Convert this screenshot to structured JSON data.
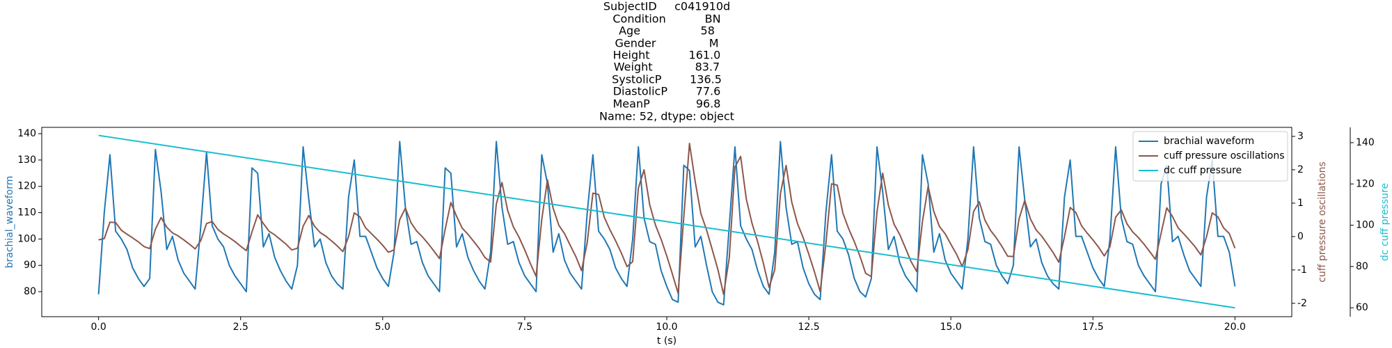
{
  "chart_data": {
    "type": "line",
    "title": [
      "SubjectID     c041910d",
      "Condition           BN",
      "Age                 58",
      "Gender               M",
      "Height           161.0",
      "Weight            83.7",
      "SystolicP        136.5",
      "DiastolicP        77.6",
      "MeanP             96.8",
      "Name: 52, dtype: object"
    ],
    "xlabel": "t (s)",
    "ylabel": "brachial_waveform",
    "y2label": "cuff pressure oscillations",
    "y3label": "dc cuff pressure",
    "xlim": [
      -1,
      21
    ],
    "xticks": [
      {
        "value": 0,
        "label": "0.0"
      },
      2.5,
      {
        "value": 5,
        "label": "5.0"
      },
      7.5,
      {
        "value": 10,
        "label": "10.0"
      },
      12.5,
      {
        "value": 15,
        "label": "15.0"
      },
      17.5,
      {
        "value": 20,
        "label": "20.0"
      }
    ],
    "ylim": [
      70.5,
      142.4
    ],
    "yticks": [
      80,
      90,
      100,
      110,
      120,
      130,
      140
    ],
    "y2lim": [
      -2.4,
      3.27
    ],
    "y2ticks": [
      -2,
      -1,
      0,
      1,
      2,
      3
    ],
    "y3lim": [
      55.7,
      147.4
    ],
    "y3ticks": [
      60,
      80,
      100,
      120,
      140
    ],
    "legend": "upper right",
    "x": [
      0,
      0.1,
      0.2,
      0.3,
      0.4,
      0.5,
      0.6,
      0.7,
      0.8,
      0.9,
      1,
      1.1,
      1.2,
      1.3,
      1.4,
      1.5,
      1.6,
      1.7,
      1.8,
      1.9,
      2,
      2.1,
      2.2,
      2.3,
      2.4,
      2.5,
      2.6,
      2.7,
      2.8,
      2.9,
      3,
      3.1,
      3.2,
      3.3,
      3.4,
      3.5,
      3.6,
      3.7,
      3.8,
      3.9,
      4,
      4.1,
      4.2,
      4.3,
      4.4,
      4.5,
      4.6,
      4.7,
      4.8,
      4.9,
      5,
      5.1,
      5.2,
      5.3,
      5.4,
      5.5,
      5.6,
      5.7,
      5.8,
      5.9,
      6,
      6.1,
      6.2,
      6.3,
      6.4,
      6.5,
      6.6,
      6.7,
      6.8,
      6.9,
      7,
      7.1,
      7.2,
      7.3,
      7.4,
      7.5,
      7.6,
      7.7,
      7.8,
      7.9,
      8,
      8.1,
      8.2,
      8.3,
      8.4,
      8.5,
      8.6,
      8.7,
      8.8,
      8.9,
      9,
      9.1,
      9.2,
      9.3,
      9.4,
      9.5,
      9.6,
      9.7,
      9.8,
      9.9,
      10,
      10.1,
      10.2,
      10.3,
      10.4,
      10.5,
      10.6,
      10.7,
      10.8,
      10.9,
      11,
      11.1,
      11.2,
      11.3,
      11.4,
      11.5,
      11.6,
      11.7,
      11.8,
      11.9,
      12,
      12.1,
      12.2,
      12.3,
      12.4,
      12.5,
      12.6,
      12.7,
      12.8,
      12.9,
      13,
      13.1,
      13.2,
      13.3,
      13.4,
      13.5,
      13.6,
      13.7,
      13.8,
      13.9,
      14,
      14.1,
      14.2,
      14.3,
      14.4,
      14.5,
      14.6,
      14.7,
      14.8,
      14.9,
      15,
      15.1,
      15.2,
      15.3,
      15.4,
      15.5,
      15.6,
      15.7,
      15.8,
      15.9,
      16,
      16.1,
      16.2,
      16.3,
      16.4,
      16.5,
      16.6,
      16.7,
      16.8,
      16.9,
      17,
      17.1,
      17.2,
      17.3,
      17.4,
      17.5,
      17.6,
      17.7,
      17.8,
      17.9,
      18,
      18.1,
      18.2,
      18.3,
      18.4,
      18.5,
      18.6,
      18.7,
      18.8,
      18.9,
      19,
      19.1,
      19.2,
      19.3,
      19.4,
      19.5,
      19.6,
      19.7,
      19.8,
      19.9,
      20
    ],
    "series": [
      {
        "name": "brachial waveform",
        "color": "#1f77b4",
        "axis": "y",
        "values": [
          79,
          110,
          132,
          103,
          100,
          96,
          89,
          85,
          82,
          85,
          134,
          118,
          96,
          101,
          92,
          87,
          84,
          81,
          105,
          133,
          105,
          100,
          97,
          90,
          86,
          83,
          80,
          127,
          125,
          97,
          102,
          93,
          88,
          84,
          81,
          90,
          135,
          115,
          97,
          100,
          91,
          86,
          83,
          81,
          116,
          130,
          101,
          101,
          95,
          89,
          85,
          82,
          95,
          137,
          112,
          98,
          99,
          91,
          86,
          83,
          80,
          127,
          125,
          97,
          102,
          93,
          88,
          84,
          81,
          95,
          137,
          112,
          98,
          99,
          91,
          86,
          83,
          80,
          132,
          121,
          95,
          102,
          92,
          87,
          84,
          81,
          110,
          132,
          103,
          100,
          96,
          89,
          85,
          82,
          100,
          135,
          108,
          99,
          98,
          88,
          82,
          77,
          76,
          128,
          126,
          97,
          101,
          90,
          80,
          76,
          75,
          105,
          135,
          105,
          100,
          96,
          88,
          82,
          79,
          95,
          137,
          112,
          98,
          99,
          89,
          83,
          79,
          77,
          110,
          132,
          103,
          100,
          94,
          85,
          80,
          78,
          85,
          135,
          118,
          96,
          101,
          91,
          86,
          83,
          80,
          132,
          121,
          95,
          102,
          92,
          87,
          84,
          81,
          100,
          135,
          108,
          99,
          98,
          90,
          86,
          83,
          90,
          135,
          115,
          97,
          100,
          91,
          86,
          83,
          81,
          116,
          130,
          101,
          101,
          95,
          89,
          85,
          82,
          100,
          135,
          108,
          99,
          98,
          90,
          86,
          83,
          80,
          121,
          128,
          99,
          101,
          94,
          88,
          85,
          82,
          116,
          130,
          101,
          101,
          95,
          82
        ]
      },
      {
        "name": "cuff pressure oscillations",
        "color": "#8c564b",
        "axis": "y2",
        "values": [
          -0.1,
          -0.06,
          0.43,
          0.42,
          0.19,
          0.07,
          -0.04,
          -0.16,
          -0.3,
          -0.36,
          0.22,
          0.57,
          0.28,
          0.11,
          0.02,
          -0.1,
          -0.23,
          -0.37,
          -0.12,
          0.39,
          0.45,
          0.21,
          0.08,
          -0.03,
          -0.15,
          -0.29,
          -0.42,
          0.14,
          0.65,
          0.39,
          0.16,
          0.05,
          -0.09,
          -0.23,
          -0.4,
          -0.35,
          0.31,
          0.63,
          0.31,
          0.12,
          0.01,
          -0.13,
          -0.28,
          -0.45,
          0.0,
          0.71,
          0.59,
          0.26,
          0.09,
          -0.08,
          -0.26,
          -0.47,
          -0.4,
          0.51,
          0.85,
          0.41,
          0.16,
          -0.01,
          -0.21,
          -0.43,
          -0.66,
          0.22,
          1.02,
          0.61,
          0.25,
          0.07,
          -0.14,
          -0.36,
          -0.63,
          -0.76,
          0.97,
          1.62,
          0.78,
          0.29,
          -0.02,
          -0.4,
          -0.81,
          -1.19,
          0.51,
          1.7,
          0.85,
          0.34,
          0.09,
          -0.26,
          -0.6,
          -1.02,
          -0.18,
          1.3,
          1.26,
          0.58,
          0.2,
          -0.13,
          -0.49,
          -0.9,
          -0.75,
          1.45,
          2.0,
          0.95,
          0.35,
          -0.08,
          -0.58,
          -1.13,
          -1.7,
          0.6,
          2.79,
          1.65,
          0.69,
          0.2,
          -0.39,
          -0.99,
          -1.73,
          -0.64,
          2.08,
          2.4,
          1.12,
          0.4,
          -0.16,
          -0.8,
          -1.52,
          -1.0,
          1.28,
          2.13,
          1.03,
          0.39,
          -0.03,
          -0.53,
          -1.06,
          -1.65,
          -0.22,
          1.58,
          1.54,
          0.7,
          0.24,
          -0.15,
          -0.59,
          -1.1,
          -1.2,
          0.74,
          1.9,
          0.94,
          0.37,
          0.06,
          -0.34,
          -0.75,
          -1.05,
          0.45,
          1.5,
          0.75,
          0.3,
          0.08,
          -0.23,
          -0.53,
          -0.9,
          -0.39,
          0.75,
          1.04,
          0.49,
          0.18,
          -0.04,
          -0.3,
          -0.59,
          -0.6,
          0.53,
          1.08,
          0.53,
          0.2,
          0.01,
          -0.23,
          -0.48,
          -0.77,
          0.0,
          0.87,
          0.72,
          0.32,
          0.1,
          -0.1,
          -0.32,
          -0.58,
          -0.3,
          0.58,
          0.8,
          0.38,
          0.14,
          -0.03,
          -0.23,
          -0.45,
          -0.68,
          0.1,
          0.86,
          0.6,
          0.26,
          0.08,
          -0.11,
          -0.31,
          -0.55,
          0.0,
          0.71,
          0.59,
          0.26,
          0.09,
          -0.35
        ]
      },
      {
        "name": "dc cuff pressure",
        "color": "#17becf",
        "axis": "y3",
        "x": [
          0,
          20
        ],
        "values": [
          143.5,
          60
        ]
      }
    ]
  }
}
